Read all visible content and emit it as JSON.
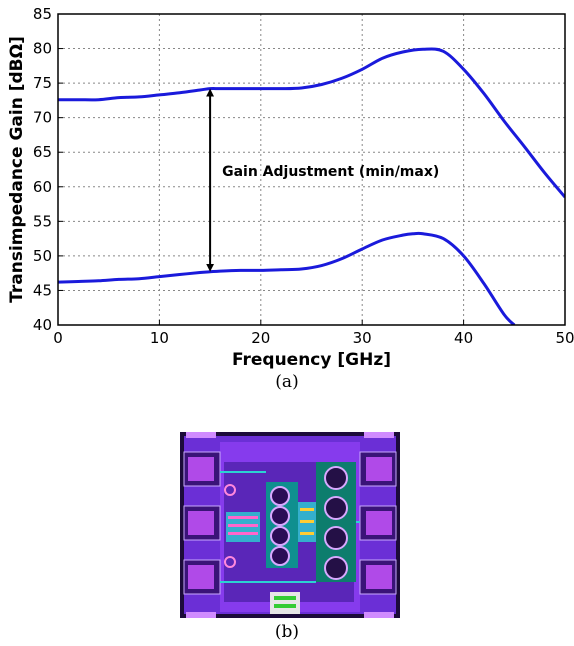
{
  "chart_data": {
    "type": "line",
    "xlabel": "Frequency [GHz]",
    "ylabel": "Transimpedance Gain [dBΩ]",
    "xlim": [
      0,
      50
    ],
    "ylim": [
      40,
      85
    ],
    "xticks": [
      "0",
      "10",
      "20",
      "30",
      "40",
      "50"
    ],
    "yticks": [
      "40",
      "45",
      "50",
      "55",
      "60",
      "65",
      "70",
      "75",
      "80",
      "85"
    ],
    "grid": true,
    "line_color": "#1a1adb",
    "series": [
      {
        "x": [
          0,
          2,
          4,
          6,
          8,
          10,
          12,
          14,
          15,
          16,
          18,
          20,
          22,
          24,
          26,
          28,
          30,
          32,
          34,
          36,
          38,
          40,
          42,
          44,
          46,
          48,
          50
        ],
        "values": [
          72.6,
          72.6,
          72.6,
          72.9,
          73.0,
          73.3,
          73.6,
          74.0,
          74.2,
          74.2,
          74.2,
          74.2,
          74.2,
          74.3,
          74.8,
          75.7,
          77.0,
          78.6,
          79.5,
          79.9,
          79.6,
          77.0,
          73.5,
          69.5,
          65.8,
          62.0,
          58.5
        ]
      },
      {
        "x": [
          0,
          2,
          4,
          6,
          8,
          10,
          12,
          14,
          15,
          16,
          18,
          20,
          22,
          24,
          26,
          28,
          30,
          32,
          34,
          35,
          36,
          38,
          40,
          42,
          44,
          45
        ],
        "values": [
          46.2,
          46.3,
          46.4,
          46.6,
          46.7,
          47.0,
          47.3,
          47.6,
          47.7,
          47.8,
          47.9,
          47.9,
          48.0,
          48.1,
          48.6,
          49.6,
          51.0,
          52.3,
          53.0,
          53.2,
          53.2,
          52.5,
          50.0,
          46.0,
          41.5,
          40.0
        ]
      }
    ],
    "annotation": {
      "text": "Gain Adjustment (min/max)",
      "x": 15,
      "from": 47.7,
      "to": 74.2
    }
  },
  "captions": {
    "a": "(a)",
    "b": "(b)"
  }
}
